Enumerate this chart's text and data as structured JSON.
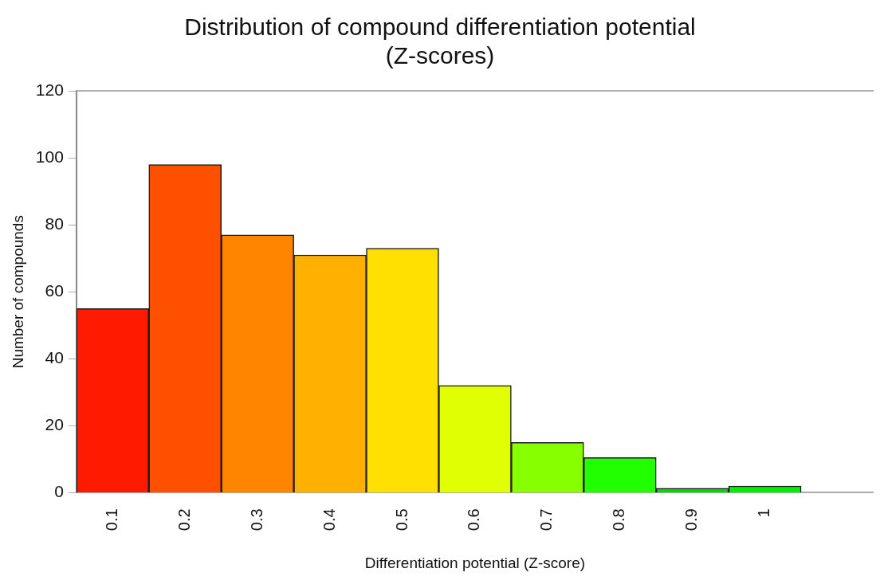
{
  "chart_data": {
    "type": "bar",
    "title": "Distribution of compound differentiation potential\n(Z-scores)",
    "xlabel": "Differentiation potential (Z-score)",
    "ylabel": "Number of compounds",
    "categories": [
      "0.1",
      "0.2",
      "0.3",
      "0.4",
      "0.5",
      "0.6",
      "0.7",
      "0.8",
      "0.9",
      "1",
      null
    ],
    "values": [
      55,
      98,
      77,
      71,
      73,
      32,
      15,
      10.5,
      1.3,
      2,
      null
    ],
    "colors": [
      "#ff1a00",
      "#ff5000",
      "#ff8400",
      "#ffb000",
      "#ffe000",
      "#e0ff00",
      "#88ff00",
      "#22ff00",
      "#00d800",
      "#00f000",
      "#000000"
    ],
    "ylim": [
      0,
      120
    ],
    "yticks": [
      0,
      20,
      40,
      60,
      80,
      100,
      120
    ],
    "grid": false,
    "legend": false
  }
}
